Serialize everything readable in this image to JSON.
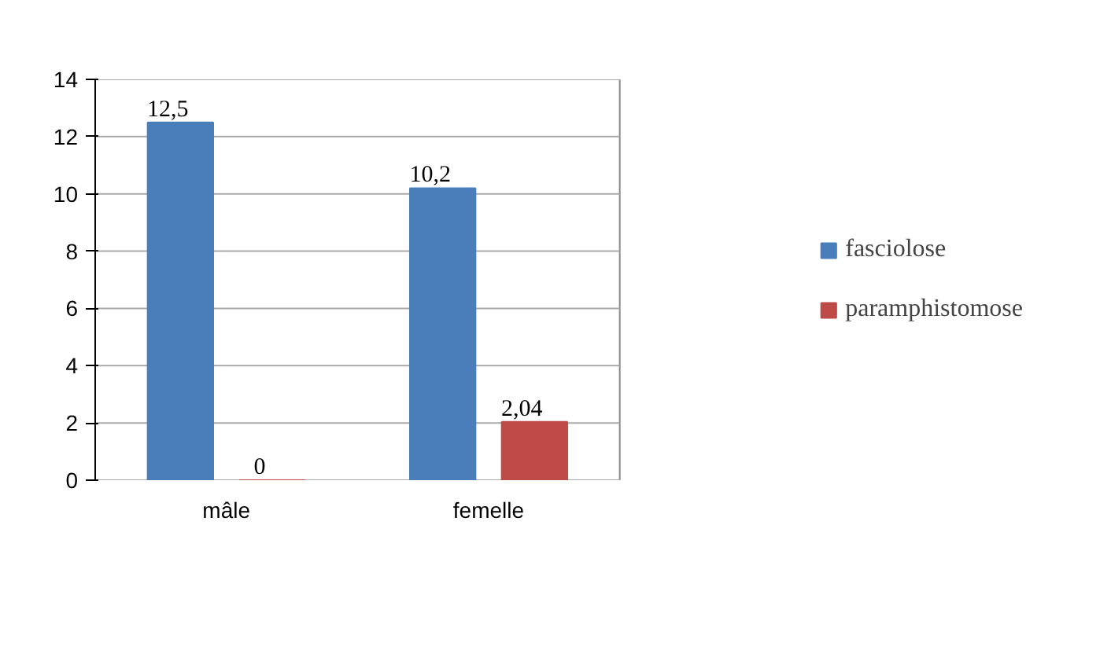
{
  "chart_data": {
    "type": "bar",
    "categories": [
      "mâle",
      "femelle"
    ],
    "series": [
      {
        "name": "fasciolose",
        "color": "#4a7ebb",
        "values": [
          12.5,
          10.2
        ],
        "value_labels": [
          "12,5",
          "10,2"
        ]
      },
      {
        "name": "paramphistomose",
        "color": "#be4b48",
        "values": [
          0,
          2.04
        ],
        "value_labels": [
          "0",
          "2,04"
        ]
      }
    ],
    "ylim": [
      0,
      14
    ],
    "yticks": [
      0,
      2,
      4,
      6,
      8,
      10,
      12,
      14
    ],
    "grid": "y",
    "legend": "right"
  }
}
